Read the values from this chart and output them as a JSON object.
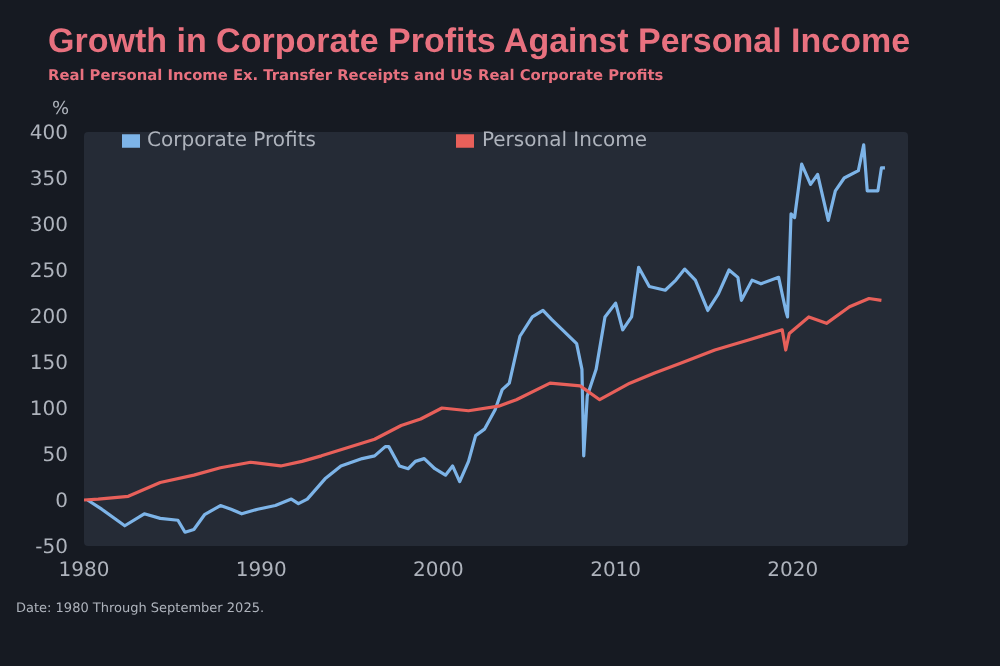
{
  "chart_data": {
    "type": "line",
    "title": "Growth in Corporate Profits Against Personal Income",
    "subtitle": "Real Personal Income Ex. Transfer Receipts and US Real Corporate Profits",
    "ylabel": "%",
    "annotations": [
      "Date: 1980 Through September 2025."
    ],
    "xlim": [
      1980,
      2026.5
    ],
    "xticks": [
      1980,
      1990,
      2000,
      2010,
      2020
    ],
    "ylim": [
      -50,
      400
    ],
    "yticks": [
      -50,
      0,
      50,
      100,
      150,
      200,
      250,
      300,
      350,
      400
    ],
    "grid": false,
    "legend": "top",
    "marker": "none",
    "line_style": "solid",
    "series": [
      {
        "name": "Corporate Profits",
        "color": "#7db4e8",
        "x": [
          1980.2,
          1981,
          1982.3,
          1983.4,
          1984.3,
          1985.3,
          1985.7,
          1986.2,
          1986.8,
          1987.7,
          1988.3,
          1988.9,
          1989.8,
          1990.8,
          1991.7,
          1992.1,
          1992.6,
          1993.6,
          1994.5,
          1995.7,
          1996.4,
          1997,
          1997.2,
          1997.8,
          1998.3,
          1998.7,
          1999.2,
          1999.8,
          2000.4,
          2000.8,
          2001.2,
          2001.7,
          2002.1,
          2002.6,
          2003.2,
          2003.6,
          2004,
          2004.6,
          2005.3,
          2005.9,
          2006.4,
          2007,
          2007.8,
          2008.1,
          2008.2,
          2008.4,
          2008.9,
          2009.4,
          2010,
          2010.4,
          2010.9,
          2011.3,
          2011.9,
          2012.8,
          2013.4,
          2013.9,
          2014.5,
          2015.2,
          2015.8,
          2016.4,
          2016.9,
          2017.1,
          2017.7,
          2018.2,
          2019.2,
          2019.6,
          2019.7,
          2019.9,
          2020.1,
          2020.5,
          2021,
          2021.4,
          2022,
          2022.4,
          2022.9,
          2023.7,
          2024,
          2024.2,
          2024.8,
          2025,
          2025.2
        ],
        "values": [
          0,
          -10,
          -28,
          -15,
          -20,
          -22,
          -35,
          -32,
          -16,
          -6,
          -10,
          -15,
          -10,
          -6,
          1,
          -4,
          1,
          23,
          37,
          45,
          48,
          58,
          58,
          37,
          34,
          42,
          45,
          34,
          27,
          37,
          20,
          42,
          70,
          77,
          98,
          120,
          127,
          178,
          199,
          206,
          196,
          185,
          170,
          142,
          48,
          113,
          142,
          199,
          214,
          185,
          199,
          253,
          232,
          228,
          239,
          251,
          239,
          206,
          224,
          250,
          242,
          217,
          239,
          235,
          242,
          206,
          199,
          311,
          307,
          365,
          343,
          354,
          304,
          336,
          350,
          358,
          386,
          336,
          336,
          361,
          361
        ]
      },
      {
        "name": "Personal Income",
        "color": "#e8605a",
        "x": [
          1980,
          1980.8,
          1982.5,
          1984.3,
          1986.2,
          1987.7,
          1989.4,
          1991.1,
          1992.3,
          1993.4,
          1994.9,
          1996.4,
          1997.9,
          1999,
          2000.2,
          2001.7,
          2003.4,
          2004.4,
          2006.3,
          2008,
          2009.1,
          2010.8,
          2012.2,
          2013.7,
          2015.6,
          2017.5,
          2019.4,
          2019.6,
          2019.8,
          2020.9,
          2021.9,
          2023.2,
          2024.3,
          2025
        ],
        "values": [
          0,
          1,
          4,
          19,
          27,
          35,
          41,
          37,
          42,
          48,
          57,
          66,
          81,
          88,
          100,
          97,
          102,
          109,
          127,
          124,
          109,
          127,
          138,
          149,
          163,
          174,
          185,
          163,
          181,
          199,
          192,
          210,
          219,
          217
        ]
      }
    ]
  }
}
